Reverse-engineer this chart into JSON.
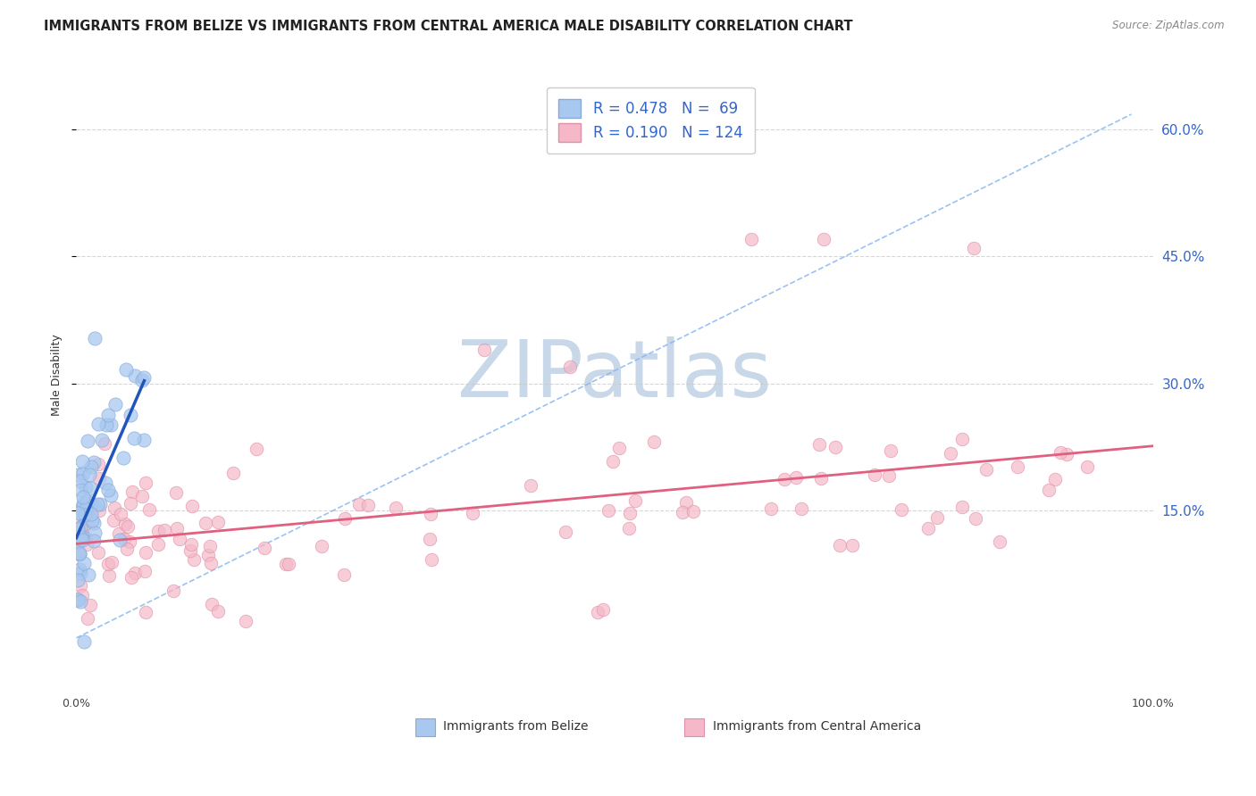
{
  "title": "IMMIGRANTS FROM BELIZE VS IMMIGRANTS FROM CENTRAL AMERICA MALE DISABILITY CORRELATION CHART",
  "source": "Source: ZipAtlas.com",
  "ylabel": "Male Disability",
  "right_ytick_labels": [
    "15.0%",
    "30.0%",
    "45.0%",
    "60.0%"
  ],
  "right_ytick_values": [
    0.15,
    0.3,
    0.45,
    0.6
  ],
  "legend_entries": [
    {
      "label": "Immigrants from Belize",
      "R": 0.478,
      "N": 69,
      "color": "#a8c8f0",
      "edge": "#88aad8"
    },
    {
      "label": "Immigrants from Central America",
      "R": 0.19,
      "N": 124,
      "color": "#f5b8c8",
      "edge": "#e090a8"
    }
  ],
  "xlim": [
    0.0,
    1.0
  ],
  "ylim": [
    -0.06,
    0.68
  ],
  "watermark": "ZIPatlas",
  "watermark_color": "#c8d8e8",
  "background_color": "#ffffff",
  "grid_color": "#cccccc",
  "title_color": "#222222",
  "blue_line_color": "#2255bb",
  "pink_line_color": "#e06080",
  "dash_line_color": "#88b8f0",
  "title_fontsize": 10.5,
  "axis_label_fontsize": 9,
  "tick_fontsize": 9,
  "legend_fontsize": 12,
  "legend_value_color": "#3366cc",
  "legend_label_color": "#333333"
}
